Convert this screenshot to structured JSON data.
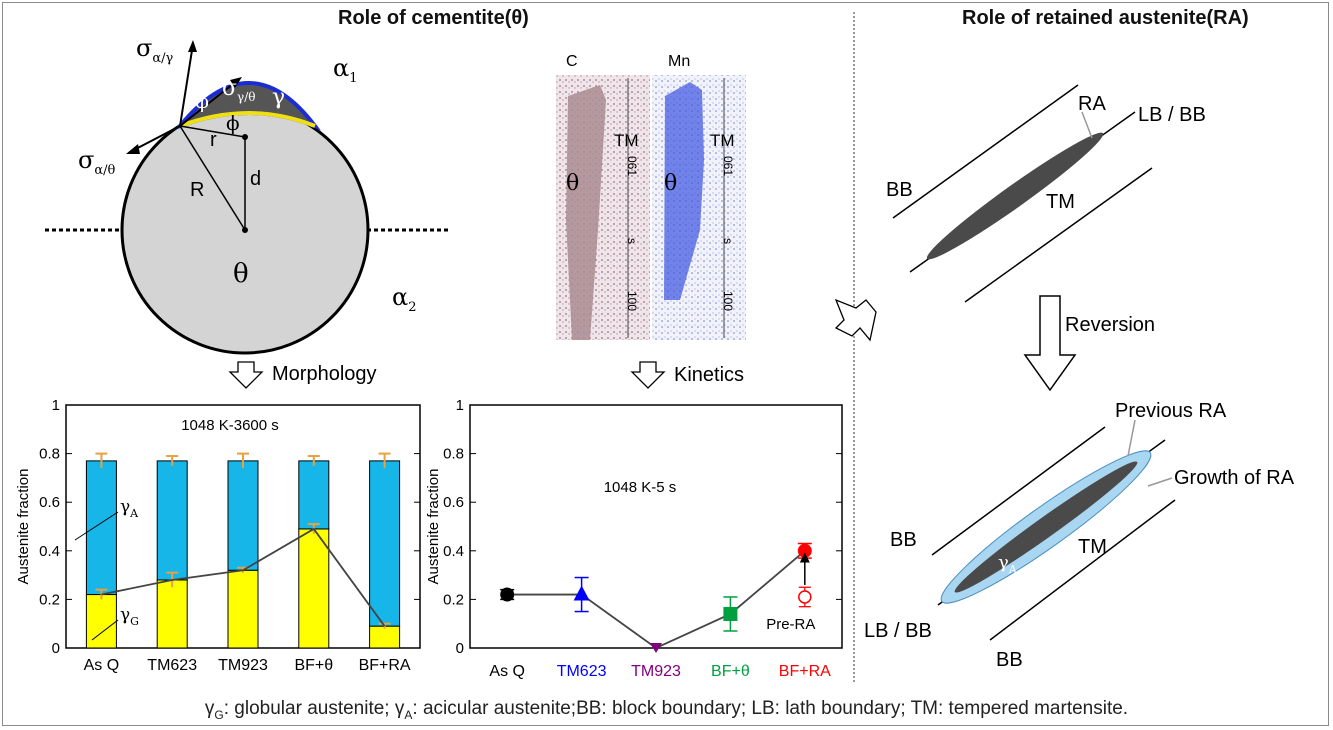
{
  "headings": {
    "cementite": "Role of cementite(θ)",
    "retained_austenite": "Role of retained austenite(RA)"
  },
  "schematic": {
    "sigma_ag": "σ",
    "sigma_ag_sub": "α/γ",
    "sigma_at": "σ",
    "sigma_at_sub": "α/θ",
    "sigma_gt": "σ",
    "sigma_gt_sub": "γ/θ",
    "phi_upper": "φ",
    "phi_lower": "ϕ",
    "gamma": "γ",
    "alpha1": "α",
    "alpha1_sub": "1",
    "alpha2": "α",
    "alpha2_sub": "2",
    "theta": "θ",
    "R": "R",
    "r": "r",
    "d": "d"
  },
  "apt": {
    "c_label": "C",
    "mn_label": "Mn",
    "tm_label": "TM",
    "theta_label": "θ",
    "scale_top": "061",
    "scale_mid": "s",
    "scale_bottom": "100"
  },
  "arrows": {
    "morphology": "Morphology",
    "kinetics": "Kinetics",
    "reversion": "Reversion"
  },
  "ra_diagram_top": {
    "ra": "RA",
    "lb_bb": "LB / BB",
    "bb": "BB",
    "tm": "TM"
  },
  "ra_diagram_bottom": {
    "previous_ra": "Previous RA",
    "growth_of_ra": "Growth of RA",
    "bb_left": "BB",
    "bb_bottom": "BB",
    "tm": "TM",
    "lb_bb": "LB / BB",
    "gamma_a": "γ",
    "gamma_a_sub": "A"
  },
  "footer": {
    "text": "γG: globular austenite; γA: acicular austenite;BB: block boundary; LB: lath boundary; TM: tempered martensite."
  },
  "chart_data": [
    {
      "type": "bar",
      "title": "1048 K-3600 s",
      "ylabel": "Austenite fraction",
      "xlabel": "",
      "ylim": [
        0,
        1
      ],
      "yticks": [
        "0",
        "0.2",
        "0.4",
        "0.6",
        "0.8",
        "1"
      ],
      "categories": [
        "As Q",
        "TM623",
        "TM923",
        "BF+θ",
        "BF+RA"
      ],
      "series": [
        {
          "name": "γG",
          "color": "#ffff00",
          "values": [
            0.22,
            0.28,
            0.32,
            0.49,
            0.09
          ]
        },
        {
          "name": "γA",
          "color": "#17b6e8",
          "values": [
            0.55,
            0.49,
            0.45,
            0.28,
            0.68
          ]
        }
      ],
      "total_error": [
        0.03,
        0.02,
        0.03,
        0.02,
        0.03
      ],
      "globular_error": [
        0.02,
        0.03,
        0.01,
        0.02,
        0.01
      ],
      "series_labels": {
        "gamma_a": "γ",
        "gamma_a_sub": "A",
        "gamma_g": "γ",
        "gamma_g_sub": "G"
      },
      "error_color": "#e8a040",
      "grid": false
    },
    {
      "type": "scatter",
      "title": "1048 K-5 s",
      "ylabel": "Austenite fraction",
      "xlabel": "",
      "ylim": [
        0,
        1
      ],
      "yticks": [
        "0",
        "0.2",
        "0.4",
        "0.6",
        "0.8",
        "1"
      ],
      "categories": [
        "As Q",
        "TM623",
        "TM923",
        "BF+θ",
        "BF+RA"
      ],
      "category_colors": [
        "#000000",
        "#0000ff",
        "#800080",
        "#00a040",
        "#ff0000"
      ],
      "values": [
        0.22,
        0.22,
        0.0,
        0.14,
        0.4
      ],
      "errors": [
        0.02,
        0.07,
        0.0,
        0.07,
        0.03
      ],
      "markers": [
        "circle",
        "triangle",
        "triangle-down",
        "square",
        "circle"
      ],
      "pre_ra": {
        "label": "Pre-RA",
        "value": 0.21,
        "error": 0.04
      },
      "grid": false
    }
  ]
}
